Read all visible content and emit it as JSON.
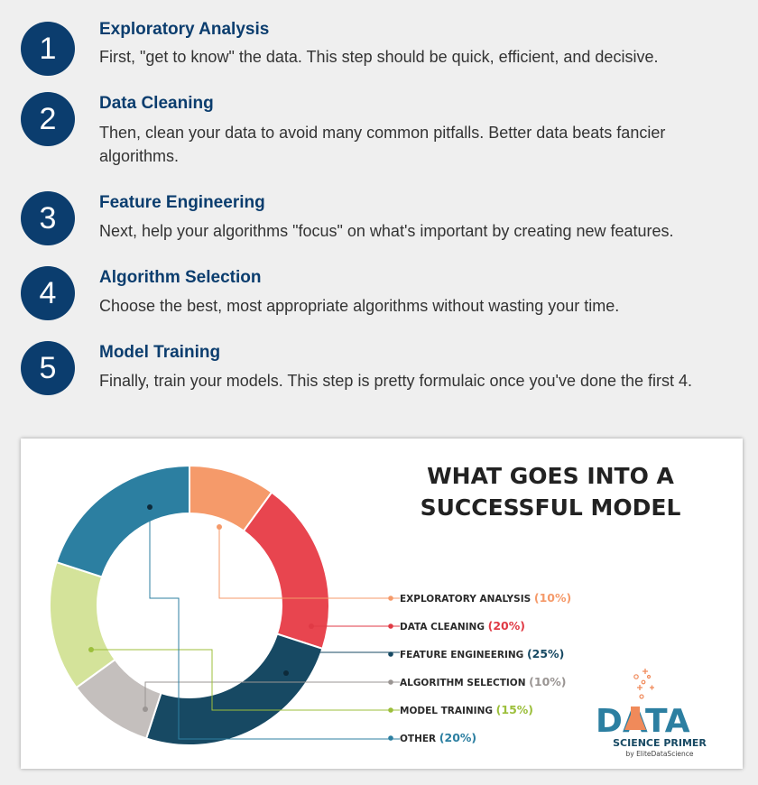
{
  "steps": [
    {
      "number": "1",
      "title": "Exploratory Analysis",
      "desc": "First, \"get to know\" the data. This step should be quick, efficient, and decisive."
    },
    {
      "number": "2",
      "title": "Data Cleaning",
      "desc": "Then, clean your data to avoid many common pitfalls. Better data beats fancier algorithms."
    },
    {
      "number": "3",
      "title": "Feature Engineering",
      "desc": "Next, help your algorithms \"focus\" on what's important by creating new features."
    },
    {
      "number": "4",
      "title": "Algorithm Selection",
      "desc": "Choose the best, most appropriate algorithms without wasting your time."
    },
    {
      "number": "5",
      "title": "Model Training",
      "desc": "Finally, train your models. This step is pretty formulaic once you've done the first 4."
    }
  ],
  "chart_data": {
    "type": "pie",
    "title": "WHAT GOES INTO A SUCCESSFUL MODEL",
    "title_lines": [
      "WHAT GOES INTO A",
      "SUCCESSFUL MODEL"
    ],
    "series": [
      {
        "name": "EXPLORATORY ANALYSIS",
        "value": 10,
        "pct_label": "(10%)",
        "color": "#f59a6a",
        "pct_color": "#f59a6a"
      },
      {
        "name": "DATA CLEANING",
        "value": 20,
        "pct_label": "(20%)",
        "color": "#e8454f",
        "pct_color": "#e03a45"
      },
      {
        "name": "FEATURE ENGINEERING",
        "value": 25,
        "pct_label": "(25%)",
        "color": "#174963",
        "pct_color": "#174963"
      },
      {
        "name": "ALGORITHM SELECTION",
        "value": 10,
        "pct_label": "(10%)",
        "color": "#c4bfbd",
        "pct_color": "#9a9593"
      },
      {
        "name": "MODEL TRAINING",
        "value": 15,
        "pct_label": "(15%)",
        "color": "#d4e39a",
        "pct_color": "#9cbf3b"
      },
      {
        "name": "OTHER",
        "value": 20,
        "pct_label": "(20%)",
        "color": "#2c7fa1",
        "pct_color": "#2c7fa1"
      }
    ],
    "legend_placement": "right"
  },
  "logo": {
    "word": "DATA",
    "line2": "SCIENCE PRIMER",
    "line3": "by EliteDataScience",
    "colors": {
      "teal": "#2c7fa1",
      "orange": "#f08a5a"
    }
  }
}
